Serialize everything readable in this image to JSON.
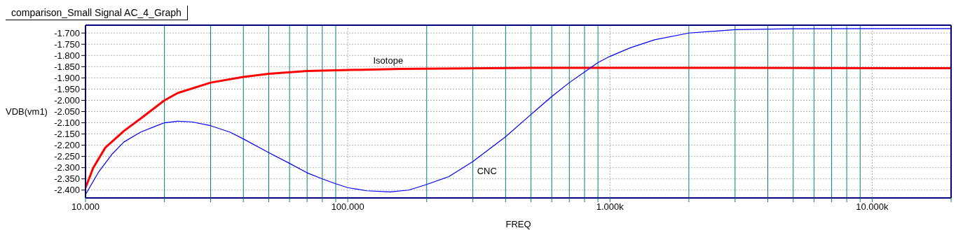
{
  "chart_data": {
    "type": "line",
    "title": "comparison_Small Signal AC_4_Graph",
    "xlabel": "FREQ",
    "ylabel": "VDB(vm1)",
    "log": "x",
    "grid": true,
    "marker": "none",
    "line_style": "solid",
    "xlim": [
      10,
      20000
    ],
    "ylim": [
      -2.435,
      -1.665
    ],
    "xticks": [
      {
        "value": 10,
        "label": "10.000"
      },
      {
        "value": 20,
        "label": null
      },
      {
        "value": 30,
        "label": null
      },
      {
        "value": 40,
        "label": null
      },
      {
        "value": 50,
        "label": null
      },
      {
        "value": 60,
        "label": null
      },
      {
        "value": 70,
        "label": null
      },
      {
        "value": 80,
        "label": null
      },
      {
        "value": 90,
        "label": null
      },
      {
        "value": 100,
        "label": "100.000"
      },
      {
        "value": 200,
        "label": null
      },
      {
        "value": 300,
        "label": null
      },
      {
        "value": 400,
        "label": null
      },
      {
        "value": 500,
        "label": null
      },
      {
        "value": 600,
        "label": null
      },
      {
        "value": 700,
        "label": null
      },
      {
        "value": 800,
        "label": null
      },
      {
        "value": 900,
        "label": null
      },
      {
        "value": 1000,
        "label": "1.000k"
      },
      {
        "value": 2000,
        "label": null
      },
      {
        "value": 3000,
        "label": null
      },
      {
        "value": 4000,
        "label": null
      },
      {
        "value": 5000,
        "label": null
      },
      {
        "value": 6000,
        "label": null
      },
      {
        "value": 7000,
        "label": null
      },
      {
        "value": 8000,
        "label": null
      },
      {
        "value": 9000,
        "label": null
      },
      {
        "value": 10000,
        "label": "10.000k"
      },
      {
        "value": 20000,
        "label": null
      }
    ],
    "yticks": [
      {
        "value": -2.4,
        "label": "-2.400"
      },
      {
        "value": -2.35,
        "label": "-2.350"
      },
      {
        "value": -2.3,
        "label": "-2.300"
      },
      {
        "value": -2.25,
        "label": "-2.250"
      },
      {
        "value": -2.2,
        "label": "-2.200"
      },
      {
        "value": -2.15,
        "label": "-2.150"
      },
      {
        "value": -2.1,
        "label": "-2.100"
      },
      {
        "value": -2.05,
        "label": "-2.050"
      },
      {
        "value": -2.0,
        "label": "-2.000"
      },
      {
        "value": -1.95,
        "label": "-1.950"
      },
      {
        "value": -1.9,
        "label": "-1.900"
      },
      {
        "value": -1.85,
        "label": "-1.850"
      },
      {
        "value": -1.8,
        "label": "-1.800"
      },
      {
        "value": -1.75,
        "label": "-1.750"
      },
      {
        "value": -1.7,
        "label": "-1.700"
      }
    ],
    "series": [
      {
        "name": "Isotope",
        "color": "#ff0000",
        "x": [
          10,
          10.7,
          11.9,
          14,
          16.2,
          20,
          22.4,
          30,
          40,
          50,
          70,
          90,
          160,
          240,
          500,
          1000,
          3000,
          20000
        ],
        "values": [
          -2.39,
          -2.301,
          -2.211,
          -2.137,
          -2.082,
          -2.0,
          -1.968,
          -1.921,
          -1.896,
          -1.882,
          -1.869,
          -1.866,
          -1.86,
          -1.858,
          -1.855,
          -1.855,
          -1.855,
          -1.857
        ]
      },
      {
        "name": "CNC",
        "color": "#0000ff",
        "x": [
          10,
          11.2,
          12.6,
          14,
          16.2,
          18.8,
          20,
          22.4,
          25.4,
          30,
          35.6,
          40,
          50,
          60,
          70,
          80,
          90,
          100,
          118,
          145,
          171,
          200,
          243,
          300,
          400,
          500,
          600,
          700,
          800,
          900,
          1000,
          1200,
          1480,
          2000,
          3000,
          5000,
          20000
        ],
        "values": [
          -2.42,
          -2.321,
          -2.241,
          -2.186,
          -2.142,
          -2.112,
          -2.1,
          -2.093,
          -2.096,
          -2.113,
          -2.142,
          -2.172,
          -2.233,
          -2.281,
          -2.323,
          -2.35,
          -2.372,
          -2.389,
          -2.403,
          -2.408,
          -2.4,
          -2.375,
          -2.34,
          -2.273,
          -2.162,
          -2.063,
          -1.983,
          -1.921,
          -1.874,
          -1.832,
          -1.804,
          -1.765,
          -1.73,
          -1.7,
          -1.685,
          -1.681,
          -1.68
        ]
      }
    ]
  }
}
